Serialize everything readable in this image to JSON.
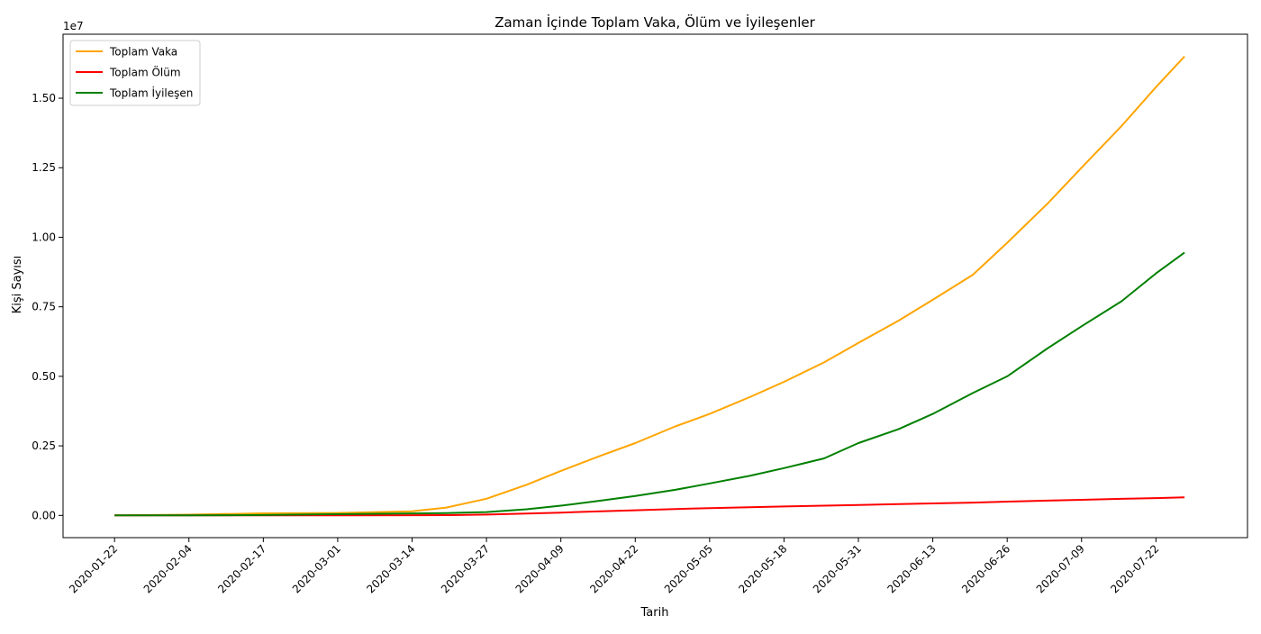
{
  "chart_data": {
    "type": "line",
    "title": "Zaman İçinde Toplam Vaka, Ölüm ve İyileşenler",
    "xlabel": "Tarih",
    "ylabel": "Kişi Sayısı",
    "y_offset_label": "1e7",
    "y_scale_factor": 10000000,
    "ylim": [
      -800000,
      17300000
    ],
    "xlim": [
      "2020-01-13",
      "2020-08-07"
    ],
    "x_ticks": [
      "2020-01-22",
      "2020-02-04",
      "2020-02-17",
      "2020-03-01",
      "2020-03-14",
      "2020-03-27",
      "2020-04-09",
      "2020-04-22",
      "2020-05-05",
      "2020-05-18",
      "2020-05-31",
      "2020-06-13",
      "2020-06-26",
      "2020-07-09",
      "2020-07-22"
    ],
    "y_ticks": [
      0,
      2500000,
      5000000,
      7500000,
      10000000,
      12500000,
      15000000
    ],
    "y_tick_labels": [
      "0.00",
      "0.25",
      "0.50",
      "0.75",
      "1.00",
      "1.25",
      "1.50"
    ],
    "legend_position": "top-left",
    "grid": false,
    "x": [
      "2020-01-22",
      "2020-02-04",
      "2020-02-17",
      "2020-03-01",
      "2020-03-14",
      "2020-03-20",
      "2020-03-27",
      "2020-04-03",
      "2020-04-09",
      "2020-04-16",
      "2020-04-22",
      "2020-04-29",
      "2020-05-05",
      "2020-05-12",
      "2020-05-18",
      "2020-05-25",
      "2020-05-31",
      "2020-06-07",
      "2020-06-13",
      "2020-06-20",
      "2020-06-26",
      "2020-07-03",
      "2020-07-09",
      "2020-07-16",
      "2020-07-22",
      "2020-07-27"
    ],
    "series": [
      {
        "name": "Toplam Vaka",
        "color": "#ffa500",
        "values": [
          550,
          25000,
          73000,
          88000,
          150000,
          280000,
          600000,
          1100000,
          1600000,
          2150000,
          2600000,
          3200000,
          3650000,
          4250000,
          4800000,
          5500000,
          6200000,
          7000000,
          7750000,
          8650000,
          9800000,
          11200000,
          12500000,
          14000000,
          15400000,
          16500000
        ]
      },
      {
        "name": "Toplam Ölüm",
        "color": "#ff0000",
        "values": [
          17,
          490,
          1770,
          2990,
          5800,
          11000,
          30000,
          65000,
          100000,
          150000,
          185000,
          230000,
          260000,
          295000,
          320000,
          350000,
          375000,
          405000,
          430000,
          460000,
          495000,
          530000,
          560000,
          595000,
          620000,
          650000
        ]
      },
      {
        "name": "Toplam İyileşen",
        "color": "#008000",
        "values": [
          28,
          500,
          12000,
          45000,
          70000,
          85000,
          120000,
          220000,
          350000,
          530000,
          700000,
          920000,
          1150000,
          1420000,
          1700000,
          2050000,
          2600000,
          3100000,
          3650000,
          4400000,
          5000000,
          6000000,
          6800000,
          7700000,
          8700000,
          9450000
        ]
      }
    ]
  }
}
